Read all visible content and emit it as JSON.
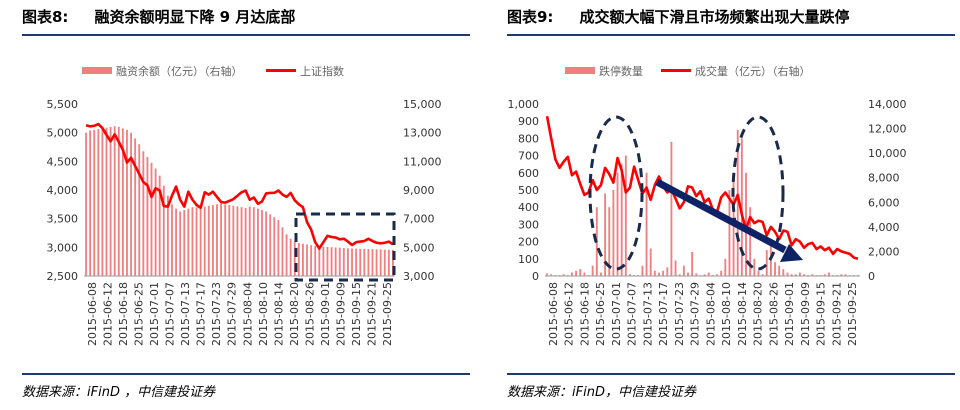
{
  "colors": {
    "bar": "#f08080",
    "line": "#ff0000",
    "rule": "#1f3b6e",
    "dash": "#1a2a4a",
    "arrow": "#0d2366"
  },
  "left": {
    "figure_num": "图表8:",
    "figure_title": "融资余额明显下降 9 月达底部",
    "source": "数据来源：iFinD ，中信建投证券",
    "chart_data": {
      "type": "bar+line",
      "legend": [
        "融资余额（亿元）（右轴）",
        "上证指数"
      ],
      "legend_position": "top",
      "left_axis": {
        "ylim": [
          2500,
          5500
        ],
        "ticks": [
          "2,500",
          "3,000",
          "3,500",
          "4,000",
          "4,500",
          "5,000",
          "5,500"
        ]
      },
      "right_axis": {
        "ylim": [
          3000,
          15000
        ],
        "ticks": [
          "3,000",
          "5,000",
          "7,000",
          "9,000",
          "11,000",
          "13,000",
          "15,000"
        ]
      },
      "x_ticks": [
        "2015-06-08",
        "2015-06-12",
        "2015-06-18",
        "2015-06-25",
        "2015-07-01",
        "2015-07-07",
        "2015-07-13",
        "2015-07-17",
        "2015-07-23",
        "2015-07-29",
        "2015-08-04",
        "2015-08-10",
        "2015-08-14",
        "2015-08-20",
        "2015-08-26",
        "2015-09-01",
        "2015-09-09",
        "2015-09-15",
        "2015-09-21",
        "2015-09-25"
      ],
      "series": [
        {
          "name": "融资余额（亿元）（右轴）",
          "axis": "right",
          "type": "bar",
          "values": [
            13000,
            13150,
            13200,
            13250,
            13300,
            13350,
            13400,
            13450,
            13400,
            13300,
            13200,
            13000,
            12600,
            12200,
            11700,
            11300,
            10900,
            10500,
            10000,
            9300,
            8600,
            8000,
            7700,
            7500,
            7600,
            7700,
            7800,
            7800,
            7900,
            7850,
            7900,
            7950,
            8000,
            8050,
            8000,
            7950,
            7900,
            7850,
            7800,
            7750,
            7850,
            7800,
            7700,
            7600,
            7500,
            7300,
            7100,
            6900,
            6400,
            5900,
            5600,
            5400,
            5300,
            5250,
            5200,
            5150,
            5100,
            5080,
            5050,
            5030,
            5010,
            4990,
            4970,
            4950,
            4930,
            4920,
            4910,
            4900,
            4890,
            4880,
            4870,
            4860,
            4850,
            4840,
            4830,
            4820
          ]
        },
        {
          "name": "上证指数",
          "axis": "left",
          "type": "line",
          "values": [
            5130,
            5110,
            5120,
            5150,
            5080,
            4960,
            4850,
            4970,
            4840,
            4700,
            4480,
            4560,
            4420,
            4280,
            4140,
            4080,
            3880,
            4030,
            3990,
            3720,
            3710,
            3900,
            4060,
            3830,
            3710,
            3970,
            3830,
            3740,
            3690,
            3960,
            3920,
            3970,
            3880,
            3790,
            3780,
            3810,
            3840,
            3900,
            3960,
            3990,
            3830,
            3870,
            3760,
            3800,
            3940,
            3950,
            3950,
            3990,
            3920,
            3880,
            3950,
            3820,
            3750,
            3700,
            3440,
            3310,
            3090,
            2980,
            3090,
            3200,
            3180,
            3170,
            3140,
            3150,
            3100,
            3040,
            3090,
            3100,
            3110,
            3150,
            3110,
            3080,
            3070,
            3080,
            3100,
            3050
          ]
        }
      ],
      "annotation": "dashed-box"
    }
  },
  "right": {
    "figure_num": "图表9:",
    "figure_title": "成交额大幅下滑且市场频繁出现大量跌停",
    "source": "数据来源：iFinD，中信建投证券",
    "chart_data": {
      "type": "bar+line",
      "legend": [
        "跌停数量",
        "成交量（亿元）（右轴）"
      ],
      "legend_position": "top",
      "left_axis": {
        "ylim": [
          0,
          1000
        ],
        "ticks": [
          "0",
          "100",
          "200",
          "300",
          "400",
          "500",
          "600",
          "700",
          "800",
          "900",
          "1,000"
        ]
      },
      "right_axis": {
        "ylim": [
          0,
          14000
        ],
        "ticks": [
          "0",
          "2,000",
          "4,000",
          "6,000",
          "8,000",
          "10,000",
          "12,000",
          "14,000"
        ]
      },
      "x_ticks": [
        "2015-06-08",
        "2015-06-12",
        "2015-06-18",
        "2015-06-25",
        "2015-07-01",
        "2015-07-07",
        "2015-07-13",
        "2015-07-17",
        "2015-07-23",
        "2015-07-29",
        "2015-08-04",
        "2015-08-10",
        "2015-08-14",
        "2015-08-20",
        "2015-08-26",
        "2015-09-01",
        "2015-09-09",
        "2015-09-15",
        "2015-09-21",
        "2015-09-25"
      ],
      "series": [
        {
          "name": "跌停数量",
          "axis": "left",
          "type": "bar",
          "values": [
            15,
            10,
            5,
            5,
            10,
            5,
            20,
            30,
            40,
            20,
            5,
            60,
            400,
            20,
            480,
            400,
            500,
            600,
            650,
            700,
            10,
            5,
            5,
            60,
            600,
            160,
            30,
            20,
            30,
            50,
            780,
            90,
            10,
            60,
            20,
            140,
            15,
            5,
            10,
            20,
            5,
            10,
            30,
            100,
            500,
            600,
            850,
            800,
            600,
            400,
            100,
            30,
            10,
            150,
            200,
            80,
            60,
            40,
            20,
            10,
            10,
            20,
            10,
            5,
            10,
            5,
            5,
            10,
            20,
            5,
            5,
            10,
            10,
            5,
            5,
            5
          ]
        },
        {
          "name": "成交量（亿元）（右轴）",
          "axis": "right",
          "type": "line",
          "values": [
            13000,
            11200,
            9500,
            8800,
            9300,
            9700,
            8200,
            8500,
            7500,
            6600,
            6800,
            7800,
            7000,
            7400,
            8800,
            8300,
            7600,
            9600,
            8600,
            6800,
            7200,
            8900,
            7800,
            6700,
            7200,
            6200,
            7400,
            8100,
            7300,
            6800,
            7100,
            6300,
            5500,
            6000,
            7300,
            7200,
            6500,
            6900,
            6000,
            6300,
            5400,
            5200,
            6400,
            6800,
            6300,
            5800,
            6600,
            5000,
            3800,
            4800,
            4300,
            4500,
            4400,
            3300,
            4000,
            3600,
            3000,
            3700,
            3600,
            2500,
            3000,
            2800,
            2300,
            2600,
            2700,
            2200,
            2400,
            2100,
            2300,
            1800,
            2200,
            2000,
            1900,
            1800,
            1500,
            1400
          ]
        }
      ],
      "annotations": [
        "dashed-ellipse",
        "dashed-ellipse",
        "trend-arrow"
      ]
    }
  }
}
